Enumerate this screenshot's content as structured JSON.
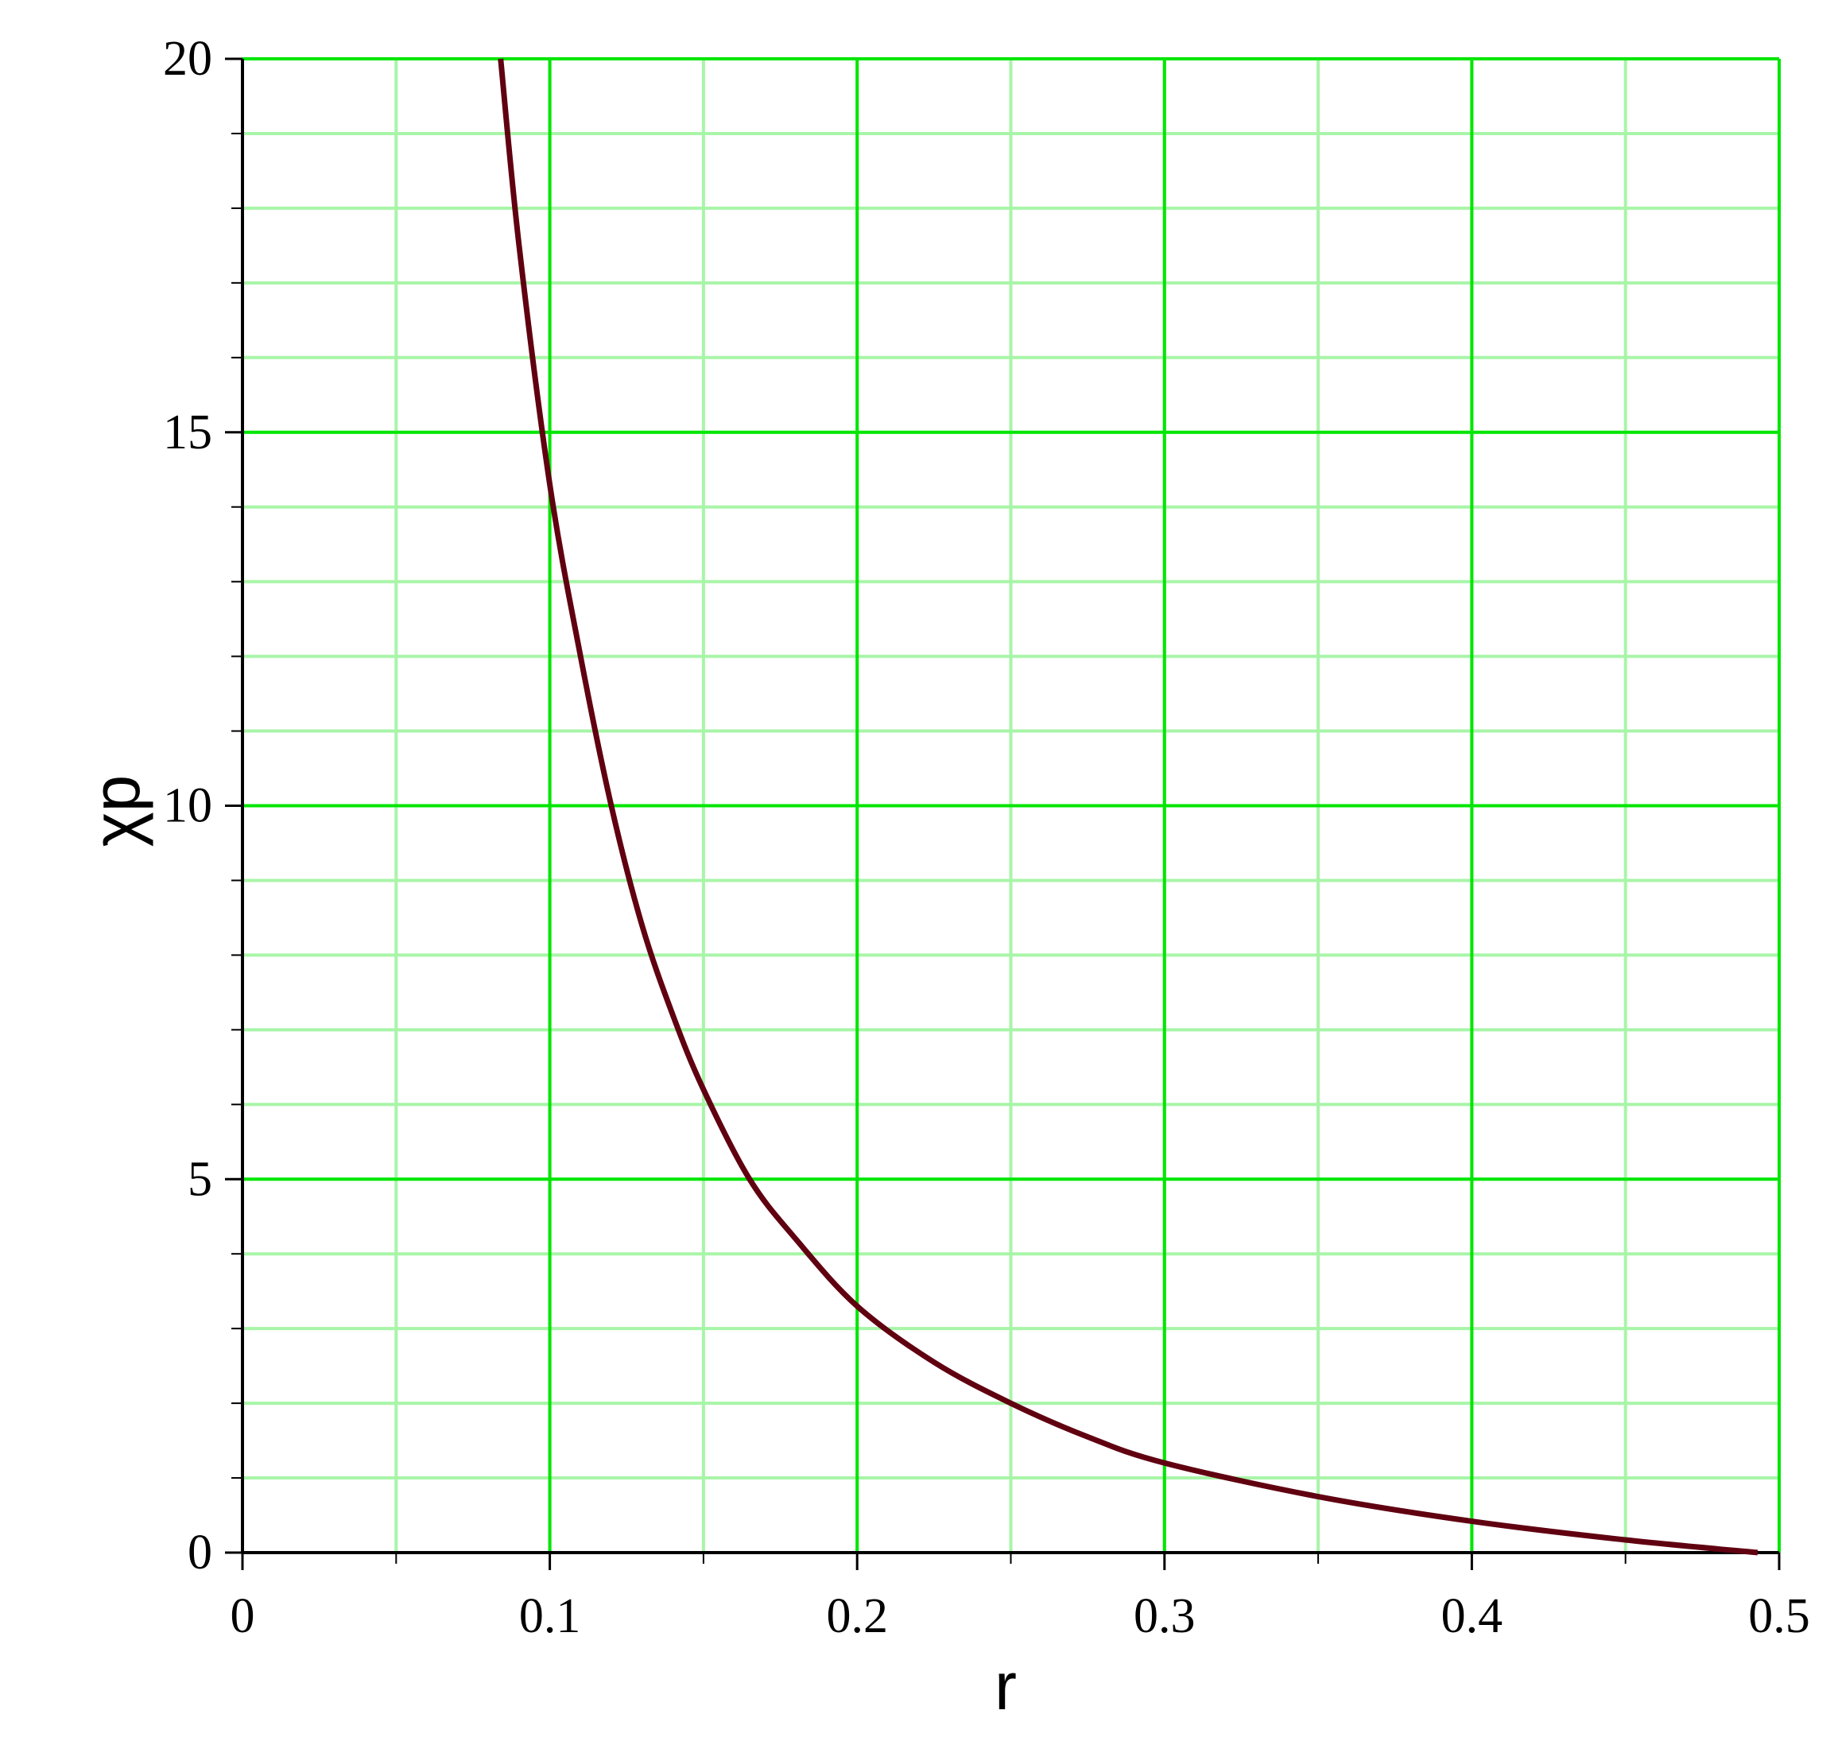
{
  "chart_data": {
    "type": "line",
    "title": "",
    "xlabel": "r",
    "ylabel": "χp",
    "xlim": [
      0,
      0.5
    ],
    "ylim": [
      0,
      20
    ],
    "x_ticks": [
      "0",
      "0.1",
      "0.2",
      "0.3",
      "0.4",
      "0.5"
    ],
    "y_ticks": [
      "0",
      "5",
      "10",
      "15",
      "20"
    ],
    "x_tick_values": [
      0,
      0.1,
      0.2,
      0.3,
      0.4,
      0.5
    ],
    "y_tick_values": [
      0,
      5,
      10,
      15,
      20
    ],
    "x_minor_step": 0.05,
    "y_minor_step": 1,
    "grid": true,
    "colors": {
      "major_grid": "#00e600",
      "minor_grid": "#a8f5a8",
      "curve": "#600010",
      "axes": "#000000"
    },
    "series": [
      {
        "x": [
          0.084,
          0.09,
          0.1,
          0.11,
          0.12,
          0.13,
          0.14,
          0.15,
          0.165,
          0.18,
          0.2,
          0.225,
          0.25,
          0.275,
          0.3,
          0.35,
          0.4,
          0.45,
          0.493
        ],
        "y": [
          20,
          17.5,
          14.3,
          12.0,
          10.0,
          8.4,
          7.2,
          6.2,
          5.0,
          4.2,
          3.3,
          2.55,
          2.0,
          1.55,
          1.2,
          0.75,
          0.42,
          0.17,
          0
        ]
      }
    ]
  }
}
